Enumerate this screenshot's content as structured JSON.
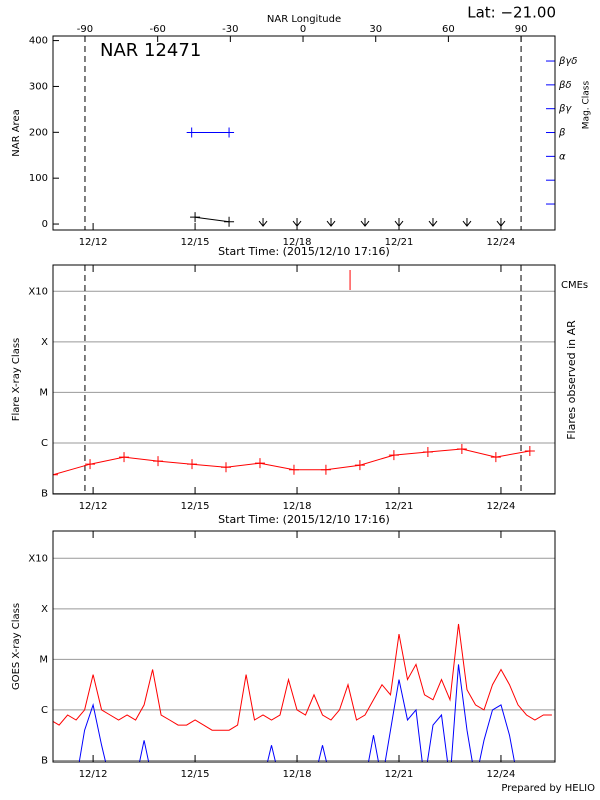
{
  "chart_data": [
    {
      "type": "line",
      "title": "NAR 12471",
      "x2label": "NAR Longitude",
      "annotation": "Lat: −21.00",
      "ylabel": "NAR Area",
      "y2label": "Mag. Class",
      "xlabel": "Start Time: (2015/12/10 17:16)",
      "xlim": [
        10.82,
        25.59
      ],
      "xticks": [
        {
          "value": 12,
          "label": "12/12"
        },
        {
          "value": 15,
          "label": "12/15"
        },
        {
          "value": 18,
          "label": "12/18"
        },
        {
          "value": 21,
          "label": "12/21"
        },
        {
          "value": 24,
          "label": "12/24"
        }
      ],
      "x2lim": [
        -103.2,
        104
      ],
      "x2ticks": [
        -90,
        -60,
        -30,
        0,
        30,
        60,
        90
      ],
      "vlines_x2": [
        -90,
        90
      ],
      "ylim": [
        -13,
        410
      ],
      "yticks": [
        0,
        100,
        200,
        300,
        400
      ],
      "y2lim": [
        -0.09,
        8.05
      ],
      "y2color": "#0000ff",
      "y2ticks": [
        {
          "value": 3,
          "label": "α"
        },
        {
          "value": 4,
          "label": "β"
        },
        {
          "value": 5,
          "label": "βγ"
        },
        {
          "value": 6,
          "label": "βδ"
        },
        {
          "value": 7,
          "label": "βγδ"
        }
      ],
      "y2minor": [
        1,
        2
      ],
      "series": [
        {
          "color": "#000000",
          "marker": "plus",
          "x": [
            15,
            16
          ],
          "values": [
            15,
            5
          ]
        },
        {
          "color": "#000000",
          "marker": "arrow",
          "line": false,
          "x": [
            17,
            18,
            19,
            20,
            21,
            22,
            23,
            24
          ],
          "values": [
            0,
            0,
            0,
            0,
            0,
            0,
            0,
            0
          ]
        },
        {
          "color": "#0000ff",
          "marker": "plus",
          "axis": "y2",
          "x": [
            14.9,
            16
          ],
          "values": [
            4,
            4
          ]
        }
      ]
    },
    {
      "type": "line",
      "ylabel": "Flare X-ray Class",
      "y2label": "Flares observed in AR",
      "xlabel": "Start Time: (2015/12/10 17:16)",
      "cme_label": "CMEs",
      "cme_color": "#ff0000",
      "cmes": [
        19.56
      ],
      "xlim": [
        10.82,
        25.59
      ],
      "xticks": [
        {
          "value": 12,
          "label": "12/12"
        },
        {
          "value": 15,
          "label": "12/15"
        },
        {
          "value": 18,
          "label": "12/18"
        },
        {
          "value": 21,
          "label": "12/21"
        },
        {
          "value": 24,
          "label": "12/24"
        }
      ],
      "ylim": [
        0.99,
        5.52
      ],
      "yticks": [
        {
          "value": 1,
          "label": "B"
        },
        {
          "value": 2,
          "label": "C"
        },
        {
          "value": 3,
          "label": "M"
        },
        {
          "value": 4,
          "label": "X"
        },
        {
          "value": 5,
          "label": "X10"
        }
      ],
      "grid": true,
      "vlines": [
        11.76,
        24.59
      ],
      "series": [
        {
          "color": "#ff0000",
          "marker": "plus",
          "x": [
            10.82,
            11.91,
            12.91,
            13.91,
            14.91,
            15.91,
            16.91,
            17.91,
            18.85,
            19.85,
            20.85,
            21.85,
            22.85,
            23.85,
            24.85
          ],
          "values": [
            1.37,
            1.58,
            1.72,
            1.64,
            1.58,
            1.52,
            1.6,
            1.47,
            1.47,
            1.56,
            1.76,
            1.82,
            1.88,
            1.72,
            1.84
          ]
        }
      ]
    },
    {
      "type": "line",
      "ylabel": "GOES X-ray Class",
      "xlim": [
        10.82,
        25.59
      ],
      "xticks": [
        {
          "value": 12,
          "label": "12/12"
        },
        {
          "value": 15,
          "label": "12/15"
        },
        {
          "value": 18,
          "label": "12/18"
        },
        {
          "value": 21,
          "label": "12/21"
        },
        {
          "value": 24,
          "label": "12/24"
        }
      ],
      "ylim": [
        0.97,
        5.54
      ],
      "yticks": [
        {
          "value": 1,
          "label": "B"
        },
        {
          "value": 2,
          "label": "C"
        },
        {
          "value": 3,
          "label": "M"
        },
        {
          "value": 4,
          "label": "X"
        },
        {
          "value": 5,
          "label": "X10"
        }
      ],
      "grid": true,
      "series": [
        {
          "color": "#ff0000",
          "x": [
            10.75,
            11.0,
            11.25,
            11.5,
            11.75,
            12.0,
            12.25,
            12.5,
            12.75,
            13.0,
            13.25,
            13.5,
            13.75,
            14.0,
            14.25,
            14.5,
            14.75,
            15.0,
            15.25,
            15.5,
            15.75,
            16.0,
            16.25,
            16.5,
            16.75,
            17.0,
            17.25,
            17.5,
            17.75,
            18.0,
            18.25,
            18.5,
            18.75,
            19.0,
            19.25,
            19.5,
            19.75,
            20.0,
            20.25,
            20.5,
            20.75,
            21.0,
            21.25,
            21.5,
            21.75,
            22.0,
            22.25,
            22.5,
            22.75,
            23.0,
            23.25,
            23.5,
            23.75,
            24.0,
            24.25,
            24.5,
            24.75,
            25.0,
            25.25,
            25.5
          ],
          "values": [
            1.8,
            1.7,
            1.9,
            1.8,
            2.0,
            2.7,
            2.0,
            1.9,
            1.8,
            1.9,
            1.8,
            2.1,
            2.8,
            1.9,
            1.8,
            1.7,
            1.7,
            1.8,
            1.7,
            1.6,
            1.6,
            1.6,
            1.7,
            2.7,
            1.8,
            1.9,
            1.8,
            1.9,
            2.6,
            2.0,
            1.9,
            2.3,
            1.9,
            1.8,
            2.0,
            2.5,
            1.8,
            1.9,
            2.2,
            2.5,
            2.3,
            3.5,
            2.6,
            2.9,
            2.3,
            2.2,
            2.6,
            2.2,
            3.7,
            2.4,
            2.1,
            2.0,
            2.5,
            2.8,
            2.5,
            2.1,
            1.9,
            1.8,
            1.9,
            1.9
          ]
        },
        {
          "color": "#0000ff",
          "x": [
            10.75,
            11.0,
            11.25,
            11.5,
            11.75,
            12.0,
            12.25,
            12.5,
            12.75,
            13.0,
            13.25,
            13.5,
            13.75,
            14.0,
            14.25,
            14.5,
            14.75,
            15.0,
            15.25,
            15.5,
            15.75,
            16.0,
            16.25,
            16.5,
            16.75,
            17.0,
            17.25,
            17.5,
            17.75,
            18.0,
            18.25,
            18.5,
            18.75,
            19.0,
            19.25,
            19.5,
            19.75,
            20.0,
            20.25,
            20.5,
            20.75,
            21.0,
            21.25,
            21.5,
            21.75,
            22.0,
            22.25,
            22.5,
            22.75,
            23.0,
            23.25,
            23.5,
            23.75,
            24.0,
            24.25,
            24.5,
            24.75,
            25.0,
            25.25,
            25.5
          ],
          "values": [
            0.6,
            0.6,
            0.6,
            0.6,
            1.6,
            2.1,
            1.3,
            0.6,
            0.6,
            0.6,
            0.6,
            1.4,
            0.6,
            0.6,
            0.6,
            0.6,
            0.6,
            0.6,
            0.6,
            0.6,
            0.6,
            0.6,
            0.6,
            0.6,
            0.6,
            0.6,
            1.3,
            0.6,
            0.6,
            0.6,
            0.6,
            0.6,
            1.3,
            0.6,
            0.6,
            0.6,
            0.6,
            0.6,
            1.5,
            0.6,
            1.6,
            2.6,
            1.8,
            2.0,
            0.6,
            1.7,
            1.9,
            0.6,
            2.9,
            1.6,
            0.6,
            1.4,
            2.0,
            2.1,
            1.5,
            0.6,
            0.6,
            0.6,
            0.6,
            0.6
          ]
        }
      ]
    }
  ],
  "footer": "Prepared by HELIO"
}
